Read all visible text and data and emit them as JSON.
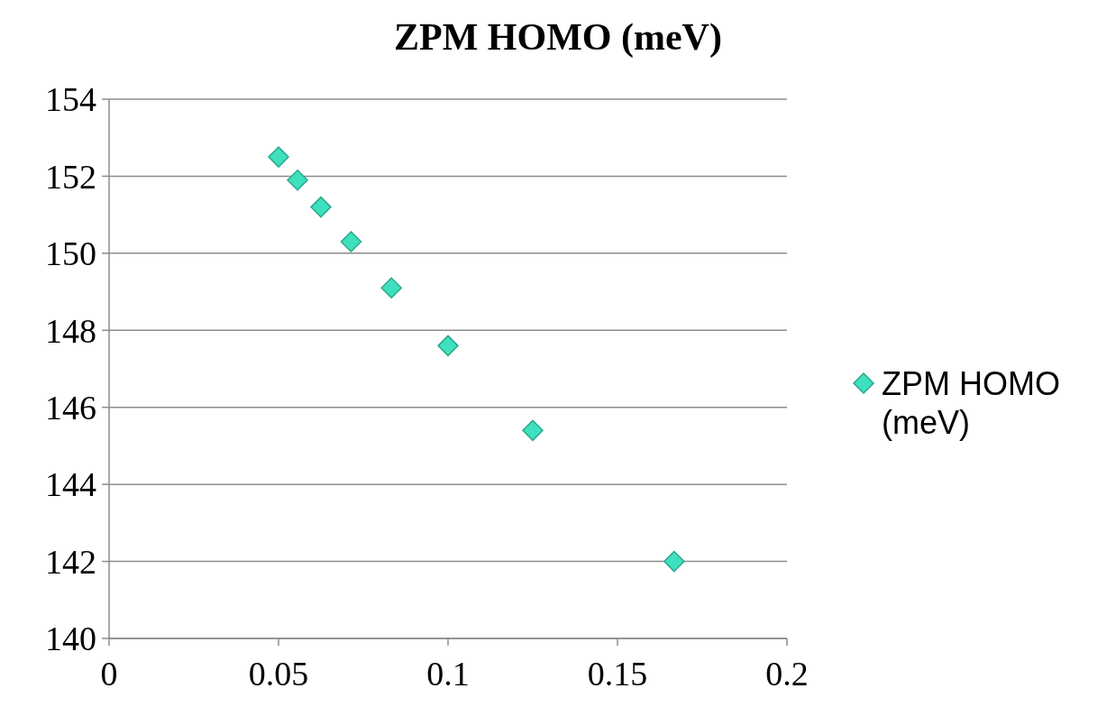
{
  "chart_data": {
    "type": "scatter",
    "title": "ZPM HOMO (meV)",
    "x": [
      0.05,
      0.0556,
      0.0625,
      0.0714,
      0.0833,
      0.1,
      0.125,
      0.1667
    ],
    "series": [
      {
        "name": "ZPM HOMO (meV)",
        "color": "#3ee0bd",
        "values": [
          152.5,
          151.9,
          151.2,
          150.3,
          149.1,
          147.6,
          145.4,
          142.0
        ]
      }
    ],
    "xlim": [
      0,
      0.2
    ],
    "xticks": [
      0,
      0.05,
      0.1,
      0.15,
      0.2
    ],
    "ylim": [
      140,
      154
    ],
    "yticks": [
      140,
      142,
      144,
      146,
      148,
      150,
      152,
      154
    ],
    "grid": "y",
    "legend": "right",
    "marker": "diamond"
  }
}
